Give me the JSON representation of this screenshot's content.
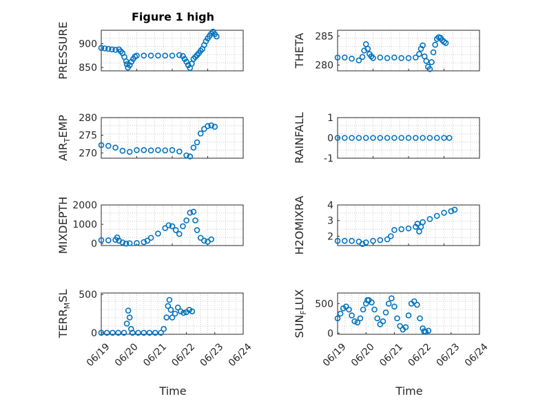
{
  "figure": {
    "title": "Figure 1 high",
    "xlabel": "Time",
    "marker_color": "#0072BD",
    "axis_color": "#262626"
  },
  "chart_data": [
    {
      "type": "scatter",
      "title": "Figure 1 high",
      "ylabel": "PRESSURE",
      "ylim": [
        843,
        928
      ],
      "yticks": [
        850,
        900
      ],
      "xlim": [
        "06/19",
        "06/23"
      ],
      "xticks": [
        "06/19",
        "06/20",
        "06/21",
        "06/22",
        "06/23"
      ],
      "xtick_labels_shown": false,
      "points": [
        [
          0,
          891
        ],
        [
          0.1,
          890
        ],
        [
          0.2,
          889
        ],
        [
          0.3,
          888
        ],
        [
          0.4,
          887
        ],
        [
          0.5,
          888
        ],
        [
          0.55,
          884
        ],
        [
          0.6,
          880
        ],
        [
          0.65,
          872
        ],
        [
          0.7,
          863
        ],
        [
          0.72,
          857
        ],
        [
          0.75,
          850
        ],
        [
          0.8,
          855
        ],
        [
          0.85,
          862
        ],
        [
          0.9,
          868
        ],
        [
          0.95,
          873
        ],
        [
          1.0,
          875
        ],
        [
          1.2,
          875
        ],
        [
          1.4,
          875
        ],
        [
          1.6,
          875
        ],
        [
          1.8,
          875
        ],
        [
          2.0,
          875
        ],
        [
          2.2,
          876
        ],
        [
          2.3,
          874
        ],
        [
          2.35,
          868
        ],
        [
          2.4,
          862
        ],
        [
          2.45,
          855
        ],
        [
          2.5,
          849
        ],
        [
          2.55,
          858
        ],
        [
          2.6,
          868
        ],
        [
          2.65,
          872
        ],
        [
          2.7,
          876
        ],
        [
          2.75,
          880
        ],
        [
          2.8,
          885
        ],
        [
          2.85,
          889
        ],
        [
          2.9,
          897
        ],
        [
          2.95,
          905
        ],
        [
          3.0,
          911
        ],
        [
          3.05,
          916
        ],
        [
          3.1,
          921
        ],
        [
          3.15,
          925
        ],
        [
          3.2,
          920
        ],
        [
          3.25,
          915
        ]
      ]
    },
    {
      "type": "scatter",
      "ylabel": "THETA",
      "ylim": [
        279,
        286
      ],
      "yticks": [
        280,
        285
      ],
      "xlim": [
        "06/19",
        "06/23"
      ],
      "xticks": [
        "06/19",
        "06/20",
        "06/21",
        "06/22",
        "06/23"
      ],
      "xtick_labels_shown": false,
      "points": [
        [
          0,
          281.3
        ],
        [
          0.2,
          281.3
        ],
        [
          0.4,
          281.1
        ],
        [
          0.6,
          280.8
        ],
        [
          0.7,
          281.4
        ],
        [
          0.75,
          282.5
        ],
        [
          0.8,
          283.6
        ],
        [
          0.85,
          282.8
        ],
        [
          0.9,
          281.9
        ],
        [
          0.95,
          281.5
        ],
        [
          1.0,
          281.2
        ],
        [
          1.2,
          281.3
        ],
        [
          1.4,
          281.2
        ],
        [
          1.6,
          281.3
        ],
        [
          1.8,
          281.2
        ],
        [
          2.0,
          281.2
        ],
        [
          2.2,
          281.3
        ],
        [
          2.3,
          281.9
        ],
        [
          2.35,
          282.8
        ],
        [
          2.4,
          283.4
        ],
        [
          2.45,
          281.5
        ],
        [
          2.5,
          280.7
        ],
        [
          2.55,
          279.7
        ],
        [
          2.6,
          279.3
        ],
        [
          2.65,
          280.5
        ],
        [
          2.7,
          282.2
        ],
        [
          2.75,
          283.5
        ],
        [
          2.8,
          284.5
        ],
        [
          2.85,
          284.8
        ],
        [
          2.9,
          284.7
        ],
        [
          2.95,
          284.3
        ],
        [
          3.0,
          284.0
        ],
        [
          3.05,
          283.8
        ]
      ]
    },
    {
      "type": "scatter",
      "ylabel": "AIR_TEMP",
      "ylabel_main": "AIR",
      "ylabel_sub": "T",
      "ylabel_rest": "EMP",
      "ylim": [
        268.5,
        280
      ],
      "yticks": [
        270,
        275,
        280
      ],
      "xlim": [
        "06/19",
        "06/23"
      ],
      "xticks": [
        "06/19",
        "06/20",
        "06/21",
        "06/22",
        "06/23"
      ],
      "xtick_labels_shown": false,
      "points": [
        [
          0,
          272.2
        ],
        [
          0.2,
          272.0
        ],
        [
          0.4,
          271.5
        ],
        [
          0.6,
          270.6
        ],
        [
          0.8,
          270.3
        ],
        [
          1.0,
          270.8
        ],
        [
          1.2,
          270.8
        ],
        [
          1.4,
          270.7
        ],
        [
          1.6,
          270.8
        ],
        [
          1.8,
          270.7
        ],
        [
          2.0,
          270.8
        ],
        [
          2.2,
          270.4
        ],
        [
          2.4,
          269.3
        ],
        [
          2.5,
          269.0
        ],
        [
          2.6,
          271.5
        ],
        [
          2.7,
          273.0
        ],
        [
          2.8,
          275.5
        ],
        [
          2.9,
          276.8
        ],
        [
          3.0,
          277.6
        ],
        [
          3.1,
          277.8
        ],
        [
          3.2,
          277.4
        ]
      ]
    },
    {
      "type": "scatter",
      "ylabel": "RAINFALL",
      "ylim": [
        -1,
        1
      ],
      "yticks": [
        -1,
        0,
        1
      ],
      "xlim": [
        "06/19",
        "06/23"
      ],
      "xticks": [
        "06/19",
        "06/20",
        "06/21",
        "06/22",
        "06/23"
      ],
      "xtick_labels_shown": false,
      "points": [
        [
          0,
          0
        ],
        [
          0.2,
          0
        ],
        [
          0.4,
          0
        ],
        [
          0.6,
          0
        ],
        [
          0.8,
          0
        ],
        [
          1.0,
          0
        ],
        [
          1.2,
          0
        ],
        [
          1.4,
          0
        ],
        [
          1.6,
          0
        ],
        [
          1.8,
          0
        ],
        [
          2.0,
          0
        ],
        [
          2.2,
          0
        ],
        [
          2.4,
          0
        ],
        [
          2.6,
          0
        ],
        [
          2.8,
          0
        ],
        [
          3.0,
          0
        ],
        [
          3.15,
          0
        ]
      ]
    },
    {
      "type": "scatter",
      "ylabel": "MIXDEPTH",
      "ylim": [
        -100,
        2000
      ],
      "yticks": [
        0,
        1000,
        2000
      ],
      "xlim": [
        "06/19",
        "06/23"
      ],
      "xticks": [
        "06/19",
        "06/20",
        "06/21",
        "06/22",
        "06/23"
      ],
      "xtick_labels_shown": false,
      "points": [
        [
          0,
          180
        ],
        [
          0.2,
          170
        ],
        [
          0.4,
          200
        ],
        [
          0.45,
          320
        ],
        [
          0.5,
          150
        ],
        [
          0.6,
          60
        ],
        [
          0.7,
          0
        ],
        [
          0.8,
          20
        ],
        [
          1.0,
          30
        ],
        [
          1.2,
          80
        ],
        [
          1.3,
          150
        ],
        [
          1.4,
          300
        ],
        [
          1.6,
          520
        ],
        [
          1.8,
          800
        ],
        [
          1.9,
          950
        ],
        [
          2.0,
          900
        ],
        [
          2.1,
          700
        ],
        [
          2.2,
          500
        ],
        [
          2.3,
          900
        ],
        [
          2.4,
          1200
        ],
        [
          2.5,
          1600
        ],
        [
          2.6,
          1650
        ],
        [
          2.65,
          1200
        ],
        [
          2.7,
          700
        ],
        [
          2.8,
          300
        ],
        [
          2.9,
          150
        ],
        [
          3.0,
          100
        ],
        [
          3.1,
          220
        ]
      ]
    },
    {
      "type": "scatter",
      "ylabel": "H2OMIXRA",
      "ylim": [
        1.4,
        4
      ],
      "yticks": [
        2,
        3,
        4
      ],
      "xlim": [
        "06/19",
        "06/23"
      ],
      "xticks": [
        "06/19",
        "06/20",
        "06/21",
        "06/22",
        "06/23"
      ],
      "xtick_labels_shown": false,
      "points": [
        [
          0,
          1.7
        ],
        [
          0.2,
          1.7
        ],
        [
          0.4,
          1.7
        ],
        [
          0.6,
          1.65
        ],
        [
          0.7,
          1.5
        ],
        [
          0.8,
          1.6
        ],
        [
          1.0,
          1.7
        ],
        [
          1.2,
          1.75
        ],
        [
          1.4,
          1.8
        ],
        [
          1.5,
          2.0
        ],
        [
          1.6,
          2.4
        ],
        [
          1.8,
          2.45
        ],
        [
          2.0,
          2.5
        ],
        [
          2.2,
          2.6
        ],
        [
          2.25,
          2.8
        ],
        [
          2.3,
          2.3
        ],
        [
          2.35,
          2.6
        ],
        [
          2.4,
          2.9
        ],
        [
          2.6,
          3.1
        ],
        [
          2.8,
          3.3
        ],
        [
          3.0,
          3.5
        ],
        [
          3.2,
          3.6
        ],
        [
          3.3,
          3.7
        ]
      ]
    },
    {
      "type": "scatter",
      "ylabel": "TERR_MSL",
      "ylabel_main": "TERR",
      "ylabel_sub": "M",
      "ylabel_rest": "SL",
      "ylim": [
        -20,
        520
      ],
      "yticks": [
        0,
        500
      ],
      "xlim": [
        "06/19",
        "06/24"
      ],
      "xticks": [
        "06/19",
        "06/20",
        "06/21",
        "06/22",
        "06/23",
        "06/24"
      ],
      "xtick_labels_shown": true,
      "points": [
        [
          0,
          0
        ],
        [
          0.2,
          0
        ],
        [
          0.4,
          0
        ],
        [
          0.6,
          0
        ],
        [
          0.8,
          0
        ],
        [
          0.9,
          120
        ],
        [
          0.95,
          290
        ],
        [
          1.0,
          200
        ],
        [
          1.05,
          50
        ],
        [
          1.1,
          0
        ],
        [
          1.3,
          0
        ],
        [
          1.5,
          0
        ],
        [
          1.7,
          0
        ],
        [
          1.9,
          0
        ],
        [
          2.1,
          0
        ],
        [
          2.2,
          50
        ],
        [
          2.3,
          200
        ],
        [
          2.35,
          350
        ],
        [
          2.4,
          430
        ],
        [
          2.45,
          300
        ],
        [
          2.5,
          200
        ],
        [
          2.6,
          250
        ],
        [
          2.7,
          330
        ],
        [
          2.8,
          280
        ],
        [
          2.9,
          260
        ],
        [
          3.0,
          270
        ],
        [
          3.1,
          300
        ],
        [
          3.2,
          280
        ]
      ]
    },
    {
      "type": "scatter",
      "ylabel": "SUN_FLUX",
      "ylabel_main": "SUN",
      "ylabel_sub": "F",
      "ylabel_rest": "LUX",
      "ylim": [
        -20,
        680
      ],
      "yticks": [
        0,
        500
      ],
      "xlim": [
        "06/19",
        "06/24"
      ],
      "xticks": [
        "06/19",
        "06/20",
        "06/21",
        "06/22",
        "06/23",
        "06/24"
      ],
      "xtick_labels_shown": true,
      "points": [
        [
          0,
          250
        ],
        [
          0.1,
          330
        ],
        [
          0.2,
          420
        ],
        [
          0.3,
          450
        ],
        [
          0.4,
          400
        ],
        [
          0.5,
          300
        ],
        [
          0.6,
          200
        ],
        [
          0.7,
          180
        ],
        [
          0.8,
          250
        ],
        [
          0.9,
          400
        ],
        [
          1.0,
          500
        ],
        [
          1.05,
          560
        ],
        [
          1.1,
          560
        ],
        [
          1.2,
          520
        ],
        [
          1.3,
          400
        ],
        [
          1.4,
          250
        ],
        [
          1.5,
          150
        ],
        [
          1.6,
          200
        ],
        [
          1.7,
          350
        ],
        [
          1.8,
          500
        ],
        [
          1.9,
          590
        ],
        [
          2.0,
          450
        ],
        [
          2.1,
          250
        ],
        [
          2.2,
          120
        ],
        [
          2.3,
          60
        ],
        [
          2.4,
          100
        ],
        [
          2.5,
          300
        ],
        [
          2.6,
          500
        ],
        [
          2.7,
          540
        ],
        [
          2.8,
          480
        ],
        [
          2.9,
          250
        ],
        [
          3.0,
          80
        ],
        [
          3.05,
          30
        ],
        [
          3.1,
          20
        ],
        [
          3.2,
          40
        ]
      ]
    }
  ]
}
